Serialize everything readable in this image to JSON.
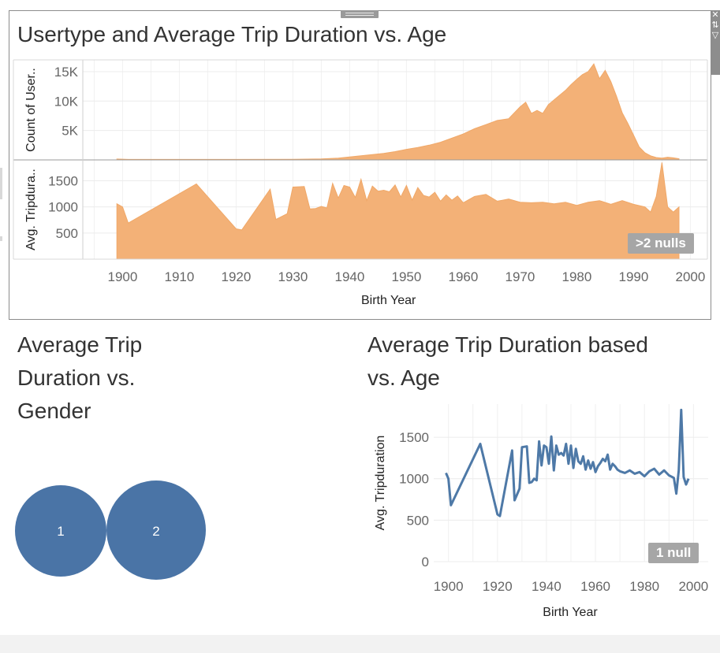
{
  "top_chart": {
    "title": "Usertype and Average Trip Duration vs. Age",
    "null_badge": ">2 nulls"
  },
  "gender_chart": {
    "title_lines": [
      "Average Trip",
      "Duration vs.",
      "Gender"
    ]
  },
  "line_chart": {
    "title_lines": [
      "Average Trip Duration based",
      "vs. Age"
    ],
    "null_badge": "1 null"
  },
  "toolbar": {
    "icons": [
      "close-icon",
      "sort-icon",
      "filter-icon"
    ]
  },
  "colors": {
    "area": "#f3b177",
    "area_stroke": "#f0a868",
    "line": "#4e79a7",
    "bubble": "#4a74a6"
  },
  "chart_data": [
    {
      "type": "area",
      "title": "Usertype and Average Trip Duration vs. Age",
      "xlabel": "Birth Year",
      "xlim": [
        1893,
        2003
      ],
      "x_ticks": [
        1900,
        1910,
        1920,
        1930,
        1940,
        1950,
        1960,
        1970,
        1980,
        1990,
        2000
      ],
      "panes": [
        {
          "ylabel": "Count of User..",
          "ylim": [
            0,
            17000
          ],
          "y_ticks": [
            {
              "value": 5000,
              "label": "5K"
            },
            {
              "value": 10000,
              "label": "10K"
            },
            {
              "value": 15000,
              "label": "15K"
            }
          ],
          "x": [
            1899,
            1901,
            1910,
            1920,
            1930,
            1935,
            1938,
            1940,
            1942,
            1944,
            1946,
            1948,
            1950,
            1952,
            1954,
            1956,
            1958,
            1960,
            1962,
            1964,
            1966,
            1968,
            1969,
            1970,
            1971,
            1972,
            1973,
            1974,
            1975,
            1976,
            1977,
            1978,
            1979,
            1980,
            1981,
            1982,
            1983,
            1984,
            1985,
            1986,
            1987,
            1988,
            1989,
            1990,
            1991,
            1992,
            1993,
            1994,
            1995,
            1996,
            1997,
            1998
          ],
          "y": [
            150,
            80,
            80,
            80,
            100,
            180,
            300,
            500,
            700,
            900,
            1100,
            1400,
            1800,
            2100,
            2500,
            3000,
            3700,
            4400,
            5300,
            6000,
            6700,
            7000,
            8000,
            9000,
            9800,
            7900,
            8400,
            7900,
            9400,
            10200,
            11000,
            11800,
            12800,
            13700,
            14500,
            15000,
            16300,
            13800,
            15200,
            13300,
            10800,
            8000,
            6200,
            4200,
            2200,
            1200,
            700,
            400,
            300,
            450,
            350,
            200
          ]
        },
        {
          "ylabel": "Avg. Tripdura..",
          "ylim": [
            0,
            1900
          ],
          "y_ticks": [
            {
              "value": 500,
              "label": "500"
            },
            {
              "value": 1000,
              "label": "1000"
            },
            {
              "value": 1500,
              "label": "1500"
            }
          ],
          "x": [
            1899,
            1900,
            1901,
            1913,
            1920,
            1921,
            1926,
            1927,
            1929,
            1930,
            1932,
            1933,
            1934,
            1935,
            1936,
            1937,
            1938,
            1939,
            1940,
            1941,
            1942,
            1943,
            1944,
            1945,
            1946,
            1947,
            1948,
            1949,
            1950,
            1951,
            1952,
            1953,
            1954,
            1955,
            1956,
            1957,
            1958,
            1959,
            1960,
            1962,
            1964,
            1966,
            1968,
            1970,
            1972,
            1974,
            1976,
            1978,
            1980,
            1982,
            1984,
            1986,
            1988,
            1990,
            1992,
            1993,
            1994,
            1995,
            1996,
            1997,
            1998
          ],
          "y": [
            1060,
            1000,
            690,
            1440,
            580,
            560,
            1340,
            760,
            870,
            1380,
            1390,
            960,
            970,
            1010,
            980,
            1450,
            1170,
            1410,
            1380,
            1180,
            1530,
            1120,
            1400,
            1300,
            1320,
            1290,
            1420,
            1190,
            1410,
            1130,
            1370,
            1220,
            1190,
            1280,
            1110,
            1230,
            1130,
            1210,
            1080,
            1200,
            1240,
            1110,
            1150,
            1090,
            1080,
            1090,
            1060,
            1090,
            1030,
            1090,
            1120,
            1050,
            1120,
            1050,
            1000,
            900,
            1200,
            1850,
            1000,
            900,
            1000
          ]
        }
      ]
    },
    {
      "type": "scatter",
      "title": "Average Trip Duration vs. Gender",
      "categories": [
        "1",
        "2"
      ],
      "relative_size": [
        0.93,
        1.0
      ]
    },
    {
      "type": "line",
      "title": "Average Trip Duration based vs. Age",
      "xlabel": "Birth Year",
      "ylabel": "Avg. Tripduration",
      "xlim": [
        1894,
        2006
      ],
      "ylim": [
        0,
        1900
      ],
      "x_ticks": [
        1900,
        1920,
        1940,
        1960,
        1980,
        2000
      ],
      "y_ticks": [
        0,
        500,
        1000,
        1500
      ],
      "x": [
        1899,
        1900,
        1901,
        1913,
        1920,
        1921,
        1926,
        1927,
        1929,
        1930,
        1932,
        1933,
        1934,
        1935,
        1936,
        1937,
        1938,
        1939,
        1940,
        1941,
        1942,
        1943,
        1944,
        1945,
        1946,
        1947,
        1948,
        1949,
        1950,
        1951,
        1952,
        1953,
        1954,
        1955,
        1956,
        1957,
        1958,
        1959,
        1960,
        1961,
        1962,
        1963,
        1964,
        1965,
        1966,
        1967,
        1968,
        1969,
        1970,
        1972,
        1974,
        1976,
        1978,
        1980,
        1982,
        1984,
        1986,
        1988,
        1990,
        1992,
        1993,
        1994,
        1995,
        1996,
        1997,
        1998
      ],
      "y": [
        1070,
        1000,
        680,
        1420,
        570,
        550,
        1340,
        740,
        880,
        1380,
        1390,
        950,
        960,
        1000,
        980,
        1450,
        1160,
        1400,
        1380,
        1180,
        1510,
        1100,
        1400,
        1290,
        1310,
        1280,
        1420,
        1180,
        1400,
        1130,
        1360,
        1210,
        1180,
        1270,
        1110,
        1220,
        1120,
        1200,
        1080,
        1150,
        1190,
        1240,
        1210,
        1290,
        1110,
        1180,
        1150,
        1110,
        1090,
        1070,
        1100,
        1060,
        1080,
        1030,
        1090,
        1120,
        1050,
        1100,
        1040,
        1010,
        820,
        1100,
        1830,
        1020,
        930,
        1000
      ]
    }
  ]
}
